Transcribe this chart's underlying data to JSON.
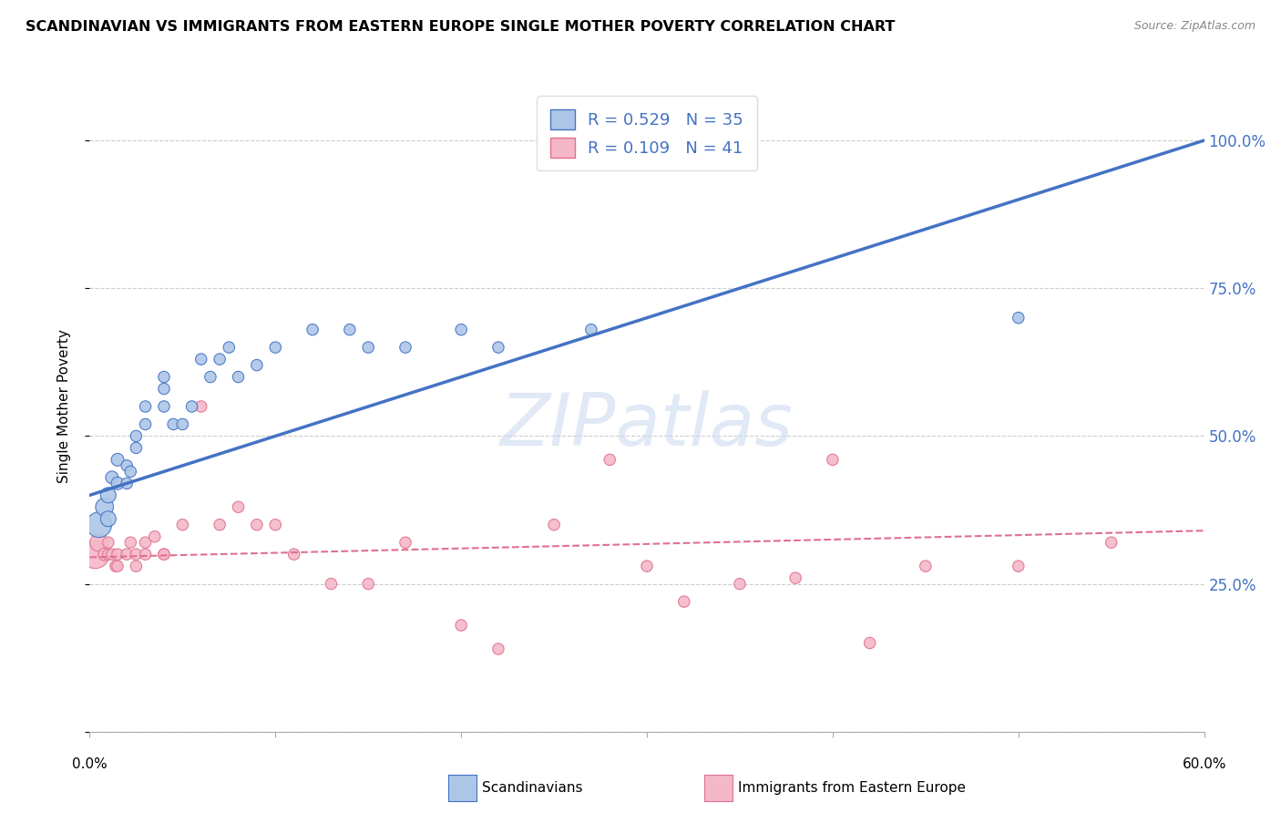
{
  "title": "SCANDINAVIAN VS IMMIGRANTS FROM EASTERN EUROPE SINGLE MOTHER POVERTY CORRELATION CHART",
  "source": "Source: ZipAtlas.com",
  "ylabel": "Single Mother Poverty",
  "yticks": [
    0.0,
    0.25,
    0.5,
    0.75,
    1.0
  ],
  "ytick_labels_right": [
    "",
    "25.0%",
    "50.0%",
    "75.0%",
    "100.0%"
  ],
  "xlim": [
    0.0,
    0.6
  ],
  "ylim": [
    0.0,
    1.1
  ],
  "watermark": "ZIPatlas",
  "blue_color": "#adc6e8",
  "blue_line_color": "#4472c4",
  "pink_color": "#f4b8c8",
  "pink_line_color": "#e07090",
  "scandinavians_x": [
    0.005,
    0.008,
    0.01,
    0.01,
    0.012,
    0.015,
    0.015,
    0.02,
    0.02,
    0.022,
    0.025,
    0.025,
    0.03,
    0.03,
    0.04,
    0.04,
    0.04,
    0.045,
    0.05,
    0.055,
    0.06,
    0.065,
    0.07,
    0.075,
    0.08,
    0.09,
    0.1,
    0.12,
    0.14,
    0.2,
    0.27,
    0.5,
    0.15,
    0.17,
    0.22
  ],
  "scandinavians_y": [
    0.35,
    0.38,
    0.36,
    0.4,
    0.43,
    0.42,
    0.46,
    0.42,
    0.45,
    0.44,
    0.48,
    0.5,
    0.52,
    0.55,
    0.55,
    0.58,
    0.6,
    0.52,
    0.52,
    0.55,
    0.63,
    0.6,
    0.63,
    0.65,
    0.6,
    0.62,
    0.65,
    0.68,
    0.68,
    0.68,
    0.68,
    0.7,
    0.65,
    0.65,
    0.65
  ],
  "scandinavians_sizes": [
    400,
    200,
    150,
    150,
    100,
    100,
    100,
    80,
    80,
    80,
    80,
    80,
    80,
    80,
    80,
    80,
    80,
    80,
    80,
    80,
    80,
    80,
    80,
    80,
    80,
    80,
    80,
    80,
    80,
    80,
    80,
    80,
    80,
    80,
    80
  ],
  "eastern_europe_x": [
    0.003,
    0.005,
    0.008,
    0.01,
    0.01,
    0.012,
    0.014,
    0.015,
    0.015,
    0.02,
    0.022,
    0.025,
    0.025,
    0.03,
    0.03,
    0.035,
    0.04,
    0.04,
    0.05,
    0.06,
    0.07,
    0.08,
    0.09,
    0.1,
    0.11,
    0.13,
    0.15,
    0.17,
    0.2,
    0.22,
    0.25,
    0.28,
    0.3,
    0.32,
    0.35,
    0.38,
    0.4,
    0.42,
    0.45,
    0.5,
    0.55
  ],
  "eastern_europe_y": [
    0.3,
    0.32,
    0.3,
    0.3,
    0.32,
    0.3,
    0.28,
    0.28,
    0.3,
    0.3,
    0.32,
    0.28,
    0.3,
    0.3,
    0.32,
    0.33,
    0.3,
    0.3,
    0.35,
    0.55,
    0.35,
    0.38,
    0.35,
    0.35,
    0.3,
    0.25,
    0.25,
    0.32,
    0.18,
    0.14,
    0.35,
    0.46,
    0.28,
    0.22,
    0.25,
    0.26,
    0.46,
    0.15,
    0.28,
    0.28,
    0.32
  ],
  "eastern_europe_sizes": [
    500,
    200,
    100,
    80,
    80,
    80,
    80,
    80,
    80,
    80,
    80,
    80,
    80,
    80,
    80,
    80,
    80,
    80,
    80,
    80,
    80,
    80,
    80,
    80,
    80,
    80,
    80,
    80,
    80,
    80,
    80,
    80,
    80,
    80,
    80,
    80,
    80,
    80,
    80,
    80,
    80
  ],
  "blue_line_y_intercept": 0.4,
  "blue_line_slope": 1.0,
  "pink_line_y_intercept": 0.295,
  "pink_line_slope": 0.075,
  "background_color": "#ffffff",
  "grid_color": "#cccccc"
}
